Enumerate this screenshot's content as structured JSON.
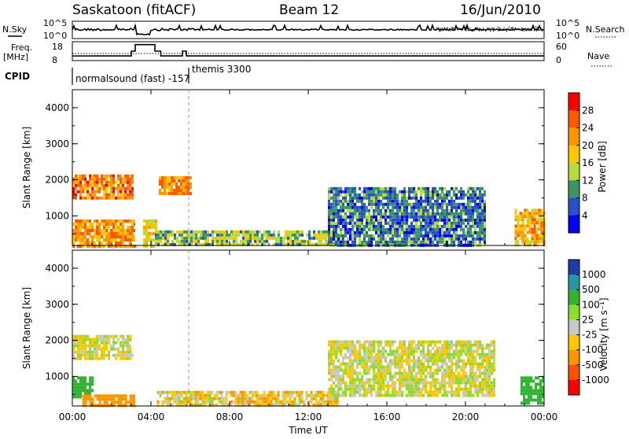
{
  "header": {
    "station": "Saskatoon (fitACF)",
    "beam": "Beam 12",
    "date": "16/Jun/2010"
  },
  "top_panels": {
    "nsky_label": "N.Sky",
    "nsky_ticks": [
      "10^5",
      "10^0"
    ],
    "nsearch_label": "N.Search",
    "nsearch_ticks": [
      "10^5",
      "10^0"
    ],
    "freq_label_1": "Freq.",
    "freq_label_2": "[MHz]",
    "freq_ticks": [
      "18",
      "8"
    ],
    "nave_label": "Nave",
    "nave_ticks": [
      "60",
      "0"
    ],
    "cpid_label": "CPID",
    "cpid_text_1": "normalsound (fast) -157",
    "cpid_text_2": "themis 3300"
  },
  "panels": {
    "power": {
      "ylabel": "Slant Range [km]",
      "yticks": [
        "4000",
        "3000",
        "2000",
        "1000"
      ],
      "cbar_label": "Power [dB]",
      "cbar_ticks": [
        "28",
        "24",
        "20",
        "16",
        "12",
        "8",
        "4"
      ],
      "cbar_colors": [
        "#ff0000",
        "#ff5a00",
        "#ff9600",
        "#ffc800",
        "#b4dc3c",
        "#3c9664",
        "#2850c8",
        "#0000ff"
      ]
    },
    "velocity": {
      "ylabel": "Slant Range [km]",
      "yticks": [
        "4000",
        "3000",
        "2000",
        "1000"
      ],
      "cbar_label": "Velocity [m s⁻¹]",
      "cbar_ticks": [
        "1000",
        "500",
        "100",
        "25",
        "-25",
        "-100",
        "-500",
        "-1000"
      ],
      "cbar_colors": [
        "#1e3caa",
        "#2896a0",
        "#32b432",
        "#8cdc32",
        "#c8c8c8",
        "#ffc800",
        "#ff9600",
        "#ff5000",
        "#ff0000"
      ]
    }
  },
  "xaxis": {
    "label": "Time UT",
    "ticks": [
      "00:00",
      "04:00",
      "08:00",
      "12:00",
      "16:00",
      "20:00",
      "00:00"
    ]
  },
  "chart_data": [
    {
      "type": "heatmap",
      "quantity": "Power",
      "xlabel": "Time UT",
      "ylabel": "Slant Range [km]",
      "ylim": [
        180,
        4500
      ],
      "xlim": [
        0,
        24
      ],
      "zlim": [
        0,
        30
      ],
      "regions": [
        {
          "t0": 0,
          "t1": 3.1,
          "r0": 1500,
          "r1": 2150,
          "z": 22
        },
        {
          "t0": 0,
          "t1": 3.2,
          "r0": 200,
          "r1": 900,
          "z": 20
        },
        {
          "t0": 3.6,
          "t1": 4.3,
          "r0": 200,
          "r1": 900,
          "z": 16
        },
        {
          "t0": 4.4,
          "t1": 6.0,
          "r0": 1600,
          "r1": 2100,
          "z": 20
        },
        {
          "t0": 4.2,
          "t1": 13.5,
          "r0": 200,
          "r1": 600,
          "z": 10
        },
        {
          "t0": 13.0,
          "t1": 21.0,
          "r0": 200,
          "r1": 1800,
          "z": 6
        },
        {
          "t0": 22.5,
          "t1": 24,
          "r0": 200,
          "r1": 1200,
          "z": 18
        }
      ]
    },
    {
      "type": "heatmap",
      "quantity": "Velocity",
      "xlabel": "Time UT",
      "ylabel": "Slant Range [km]",
      "ylim": [
        180,
        4500
      ],
      "xlim": [
        0,
        24
      ],
      "zlim": [
        -1000,
        1000
      ],
      "regions": [
        {
          "t0": 0,
          "t1": 3.1,
          "r0": 1500,
          "r1": 2150,
          "z": 0
        },
        {
          "t0": 0,
          "t1": 1.0,
          "r0": 400,
          "r1": 1000,
          "z": 300
        },
        {
          "t0": 0.5,
          "t1": 3.2,
          "r0": 200,
          "r1": 500,
          "z": -200
        },
        {
          "t0": 4.3,
          "t1": 13.5,
          "r0": 200,
          "r1": 600,
          "z": -50
        },
        {
          "t0": 13.0,
          "t1": 21.5,
          "r0": 500,
          "r1": 2000,
          "z": 0
        },
        {
          "t0": 22.8,
          "t1": 24,
          "r0": 300,
          "r1": 1000,
          "z": 400
        }
      ]
    }
  ]
}
